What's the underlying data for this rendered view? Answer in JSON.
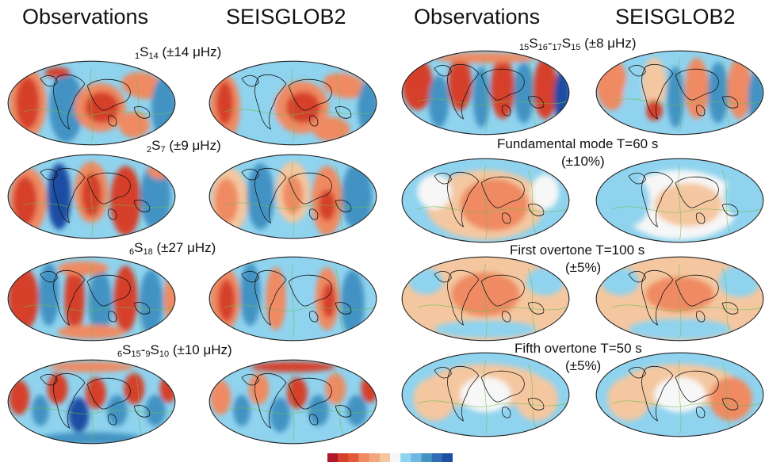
{
  "columns": {
    "left_obs": "Observations",
    "left_model": "SEISGLOB2",
    "right_obs": "Observations",
    "right_model": "SEISGLOB2"
  },
  "left_panels": [
    {
      "mode": {
        "pre": "",
        "n": "1",
        "l": "14"
      },
      "range": "(±14 μHz)"
    },
    {
      "mode": {
        "pre": "",
        "n": "2",
        "l": "7"
      },
      "range": "(±9 μHz)"
    },
    {
      "mode": {
        "pre": "",
        "n": "6",
        "l": "18"
      },
      "range": "(±27 μHz)"
    },
    {
      "mode": {
        "n1": "6",
        "l1": "15",
        "n2": "9",
        "l2": "10"
      },
      "range": "(±10 μHz)"
    }
  ],
  "right_panels": [
    {
      "mode": {
        "n1": "15",
        "l1": "16",
        "n2": "17",
        "l2": "15"
      },
      "range": "(±8 μHz)"
    },
    {
      "title": "Fundamental mode T=60 s",
      "range": "(±10%)"
    },
    {
      "title": "First overtone T=100 s",
      "range": "(±5%)"
    },
    {
      "title": "Fifth overtone T=50 s",
      "range": "(±5%)"
    }
  ],
  "palette": {
    "red_dark": "#b2182b",
    "red": "#d6412c",
    "orange": "#ef8a62",
    "tan": "#f4c7a0",
    "white": "#f7f7f7",
    "cyan": "#8fd3ef",
    "blue": "#4393c3",
    "navy": "#1f4ea3",
    "coast": "#111111",
    "plate": "#6abf4b"
  }
}
